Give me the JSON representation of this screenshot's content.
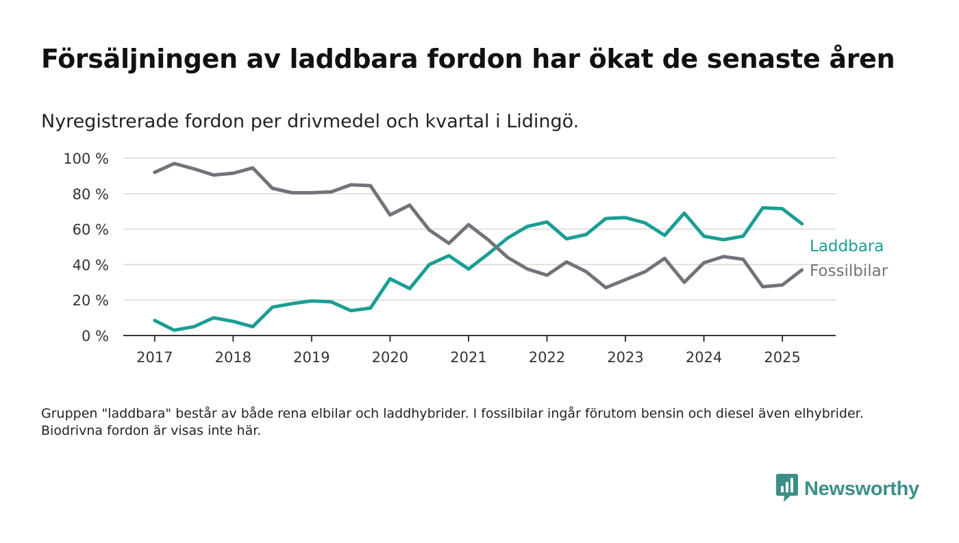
{
  "title": "Försäljningen av laddbara fordon har ökat de senaste åren",
  "subtitle": "Nyregistrerade fordon per drivmedel och kvartal i Lidingö.",
  "note": "Gruppen \"laddbara\" består av både rena elbilar och laddhybrider. I fossilbilar ingår förutom bensin och diesel även elhybrider. Biodrivna fordon är visas inte här.",
  "brand": {
    "name": "Newsworthy",
    "color": "#3b8f87"
  },
  "chart_data": {
    "type": "line",
    "x": [
      2017.0,
      2017.25,
      2017.5,
      2017.75,
      2018.0,
      2018.25,
      2018.5,
      2018.75,
      2019.0,
      2019.25,
      2019.5,
      2019.75,
      2020.0,
      2020.25,
      2020.5,
      2020.75,
      2021.0,
      2021.25,
      2021.5,
      2021.75,
      2022.0,
      2022.25,
      2022.5,
      2022.75,
      2023.0,
      2023.25,
      2023.5,
      2023.75,
      2024.0,
      2024.25,
      2024.5,
      2024.75,
      2025.0,
      2025.25
    ],
    "xticks": [
      2017,
      2018,
      2019,
      2020,
      2021,
      2022,
      2023,
      2024,
      2025
    ],
    "xlim": [
      2016.6,
      2025.68
    ],
    "ylim": [
      0,
      100
    ],
    "yticks": [
      0,
      20,
      40,
      60,
      80,
      100
    ],
    "ytick_labels": [
      "0 %",
      "20 %",
      "40 %",
      "60 %",
      "80 %",
      "100 %"
    ],
    "grid": true,
    "legend": "right, labels at line ends",
    "series": [
      {
        "name": "Laddbara",
        "color": "#1a9e94",
        "values": [
          8.5,
          3,
          5,
          10,
          8,
          5,
          16,
          18,
          19.5,
          19,
          14,
          15.5,
          32,
          26.5,
          40,
          45,
          37.5,
          46,
          55,
          61.5,
          64,
          54.5,
          57,
          66,
          66.5,
          63.5,
          56.5,
          69,
          56,
          54,
          56,
          72,
          71.5,
          63
        ]
      },
      {
        "name": "Fossilbilar",
        "color": "#73727a",
        "values": [
          92,
          97,
          94,
          90.5,
          91.5,
          94.5,
          83,
          80.5,
          80.5,
          81,
          85,
          84.5,
          68,
          73.5,
          59.5,
          52,
          62.5,
          54,
          44,
          37.5,
          34,
          41.5,
          36,
          27,
          31.5,
          36,
          43.5,
          30,
          41,
          44.5,
          43,
          27.5,
          28.5,
          37
        ]
      }
    ]
  }
}
